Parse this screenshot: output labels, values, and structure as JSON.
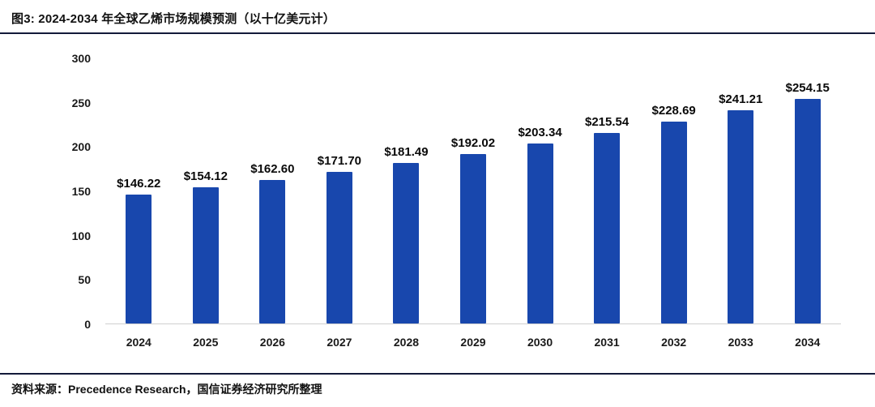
{
  "header": {
    "title": "图3: 2024-2034 年全球乙烯市场规模预测（以十亿美元计）"
  },
  "footer": {
    "source": "资料来源：Precedence Research，国信证券经济研究所整理"
  },
  "colors": {
    "bar": "#1847ad",
    "rule": "#131a3a",
    "axis_text": "#1a1a1a"
  },
  "chart_data": {
    "type": "bar",
    "title": "2024-2034 年全球乙烯市场规模预测（以十亿美元计）",
    "categories": [
      "2024",
      "2025",
      "2026",
      "2027",
      "2028",
      "2029",
      "2030",
      "2031",
      "2032",
      "2033",
      "2034"
    ],
    "values": [
      146.22,
      154.12,
      162.6,
      171.7,
      181.49,
      192.02,
      203.34,
      215.54,
      228.69,
      241.21,
      254.15
    ],
    "data_labels": [
      "$146.22",
      "$154.12",
      "$162.60",
      "$171.70",
      "$181.49",
      "$192.02",
      "$203.34",
      "$215.54",
      "$228.69",
      "$241.21",
      "$254.15"
    ],
    "value_prefix": "$",
    "xlabel": "",
    "ylabel": "",
    "ylim": [
      0,
      300
    ],
    "yticks": [
      0,
      50,
      100,
      150,
      200,
      250,
      300
    ],
    "grid": false,
    "legend_position": "none",
    "unit": "十亿美元 (billions USD)"
  }
}
